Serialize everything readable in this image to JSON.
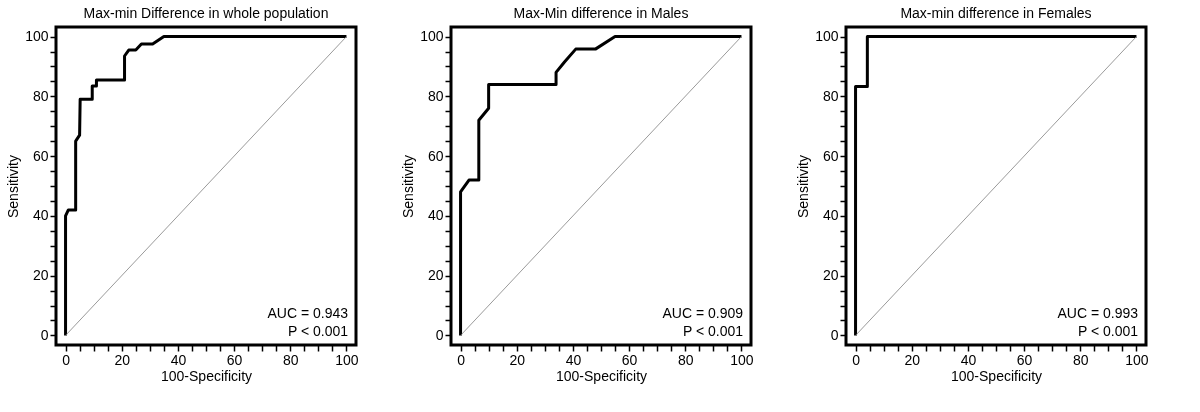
{
  "chart_data": [
    {
      "type": "line",
      "title": "Max-min  Difference in whole population",
      "xlabel": "100-Specificity",
      "ylabel": "Sensitivity",
      "series": [
        {
          "x": [
            0,
            0,
            1,
            3.6,
            3.6,
            5,
            5.2,
            9.5,
            9.5,
            11,
            11,
            21,
            21,
            22.5,
            25,
            27,
            31,
            35,
            100
          ],
          "values": [
            0,
            40,
            42,
            42,
            65,
            67,
            79,
            79,
            83.5,
            83.5,
            85.5,
            85.5,
            93.5,
            95.5,
            95.5,
            97.5,
            97.5,
            100,
            100
          ],
          "color": "#000000"
        },
        {
          "x": [
            0,
            100
          ],
          "values": [
            0,
            100
          ],
          "color": "#808080"
        }
      ],
      "xlim": [
        -3.4,
        103.4
      ],
      "ylim": [
        -3.2,
        103.2
      ],
      "xticks": [
        0,
        {
          "value": 5,
          "label": null
        },
        {
          "value": 10,
          "label": null
        },
        {
          "value": 15,
          "label": null
        },
        20,
        {
          "value": 25,
          "label": null
        },
        {
          "value": 30,
          "label": null
        },
        {
          "value": 35,
          "label": null
        },
        40,
        {
          "value": 45,
          "label": null
        },
        {
          "value": 50,
          "label": null
        },
        {
          "value": 55,
          "label": null
        },
        60,
        {
          "value": 65,
          "label": null
        },
        {
          "value": 70,
          "label": null
        },
        {
          "value": 75,
          "label": null
        },
        80,
        {
          "value": 85,
          "label": null
        },
        {
          "value": 90,
          "label": null
        },
        {
          "value": 95,
          "label": null
        },
        100
      ],
      "yticks": [
        0,
        {
          "value": 5,
          "label": null
        },
        {
          "value": 10,
          "label": null
        },
        {
          "value": 15,
          "label": null
        },
        20,
        {
          "value": 25,
          "label": null
        },
        {
          "value": 30,
          "label": null
        },
        {
          "value": 35,
          "label": null
        },
        40,
        {
          "value": 45,
          "label": null
        },
        {
          "value": 50,
          "label": null
        },
        {
          "value": 55,
          "label": null
        },
        60,
        {
          "value": 65,
          "label": null
        },
        {
          "value": 70,
          "label": null
        },
        {
          "value": 75,
          "label": null
        },
        80,
        {
          "value": 85,
          "label": null
        },
        {
          "value": 90,
          "label": null
        },
        {
          "value": 95,
          "label": null
        },
        100
      ],
      "annotations": [
        "AUC = 0.943",
        "P < 0.001"
      ],
      "grid": false
    },
    {
      "type": "line",
      "title": "Max-Min  difference in Males",
      "xlabel": "100-Specificity",
      "ylabel": "Sensitivity",
      "series": [
        {
          "x": [
            0,
            0,
            3,
            6.5,
            6.5,
            10,
            10,
            34,
            34,
            37,
            41,
            48,
            55,
            100
          ],
          "values": [
            0,
            48,
            52,
            52,
            72,
            76,
            84,
            84,
            88,
            91.5,
            95.8,
            95.8,
            100,
            100
          ],
          "color": "#000000"
        },
        {
          "x": [
            0,
            100
          ],
          "values": [
            0,
            100
          ],
          "color": "#808080"
        }
      ],
      "xlim": [
        -3.4,
        103.4
      ],
      "ylim": [
        -3.2,
        103.2
      ],
      "xticks": [
        0,
        {
          "value": 5,
          "label": null
        },
        {
          "value": 10,
          "label": null
        },
        {
          "value": 15,
          "label": null
        },
        20,
        {
          "value": 25,
          "label": null
        },
        {
          "value": 30,
          "label": null
        },
        {
          "value": 35,
          "label": null
        },
        40,
        {
          "value": 45,
          "label": null
        },
        {
          "value": 50,
          "label": null
        },
        {
          "value": 55,
          "label": null
        },
        60,
        {
          "value": 65,
          "label": null
        },
        {
          "value": 70,
          "label": null
        },
        {
          "value": 75,
          "label": null
        },
        80,
        {
          "value": 85,
          "label": null
        },
        {
          "value": 90,
          "label": null
        },
        {
          "value": 95,
          "label": null
        },
        100
      ],
      "yticks": [
        0,
        {
          "value": 5,
          "label": null
        },
        {
          "value": 10,
          "label": null
        },
        {
          "value": 15,
          "label": null
        },
        20,
        {
          "value": 25,
          "label": null
        },
        {
          "value": 30,
          "label": null
        },
        {
          "value": 35,
          "label": null
        },
        40,
        {
          "value": 45,
          "label": null
        },
        {
          "value": 50,
          "label": null
        },
        {
          "value": 55,
          "label": null
        },
        60,
        {
          "value": 65,
          "label": null
        },
        {
          "value": 70,
          "label": null
        },
        {
          "value": 75,
          "label": null
        },
        80,
        {
          "value": 85,
          "label": null
        },
        {
          "value": 90,
          "label": null
        },
        {
          "value": 95,
          "label": null
        },
        100
      ],
      "annotations": [
        "AUC = 0.909",
        "P < 0.001"
      ],
      "grid": false
    },
    {
      "type": "line",
      "title": "Max-min  difference in Females",
      "xlabel": "100-Specificity",
      "ylabel": "Sensitivity",
      "series": [
        {
          "x": [
            0,
            0,
            4.2,
            4.2,
            100
          ],
          "values": [
            0,
            83.3,
            83.3,
            100,
            100
          ],
          "color": "#000000"
        },
        {
          "x": [
            0,
            100
          ],
          "values": [
            0,
            100
          ],
          "color": "#808080"
        }
      ],
      "xlim": [
        -3.4,
        103.4
      ],
      "ylim": [
        -3.2,
        103.2
      ],
      "xticks": [
        0,
        {
          "value": 5,
          "label": null
        },
        {
          "value": 10,
          "label": null
        },
        {
          "value": 15,
          "label": null
        },
        20,
        {
          "value": 25,
          "label": null
        },
        {
          "value": 30,
          "label": null
        },
        {
          "value": 35,
          "label": null
        },
        40,
        {
          "value": 45,
          "label": null
        },
        {
          "value": 50,
          "label": null
        },
        {
          "value": 55,
          "label": null
        },
        60,
        {
          "value": 65,
          "label": null
        },
        {
          "value": 70,
          "label": null
        },
        {
          "value": 75,
          "label": null
        },
        80,
        {
          "value": 85,
          "label": null
        },
        {
          "value": 90,
          "label": null
        },
        {
          "value": 95,
          "label": null
        },
        100
      ],
      "yticks": [
        0,
        {
          "value": 5,
          "label": null
        },
        {
          "value": 10,
          "label": null
        },
        {
          "value": 15,
          "label": null
        },
        20,
        {
          "value": 25,
          "label": null
        },
        {
          "value": 30,
          "label": null
        },
        {
          "value": 35,
          "label": null
        },
        40,
        {
          "value": 45,
          "label": null
        },
        {
          "value": 50,
          "label": null
        },
        {
          "value": 55,
          "label": null
        },
        60,
        {
          "value": 65,
          "label": null
        },
        {
          "value": 70,
          "label": null
        },
        {
          "value": 75,
          "label": null
        },
        80,
        {
          "value": 85,
          "label": null
        },
        {
          "value": 90,
          "label": null
        },
        {
          "value": 95,
          "label": null
        },
        100
      ],
      "annotations": [
        "AUC = 0.993",
        "P < 0.001"
      ],
      "grid": false
    }
  ]
}
